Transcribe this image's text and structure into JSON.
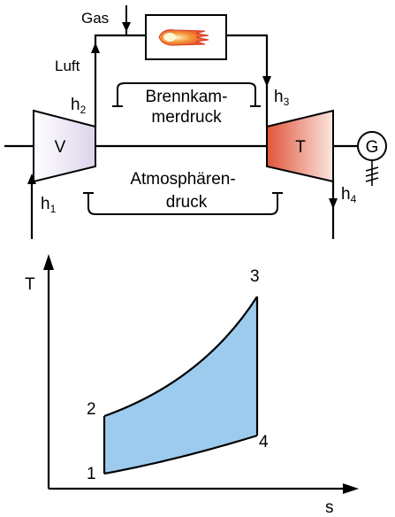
{
  "schematic": {
    "labels": {
      "gas": "Gas",
      "luft": "Luft",
      "compressor": "V",
      "turbine": "T",
      "generator": "G",
      "h1": "h",
      "h1_sub": "1",
      "h2": "h",
      "h2_sub": "2",
      "h3": "h",
      "h3_sub": "3",
      "h4": "h",
      "h4_sub": "4"
    },
    "combustion_pressure": {
      "line1": "Brennkam-",
      "line2": "merdruck"
    },
    "atmospheric_pressure": {
      "line1": "Atmosphären-",
      "line2": "druck"
    },
    "colors": {
      "compressor_fill": "#e9e2f3",
      "turbine_fill": "#e05a40",
      "flame": "#e8442a"
    }
  },
  "ts_diagram": {
    "y_axis_label": "T",
    "x_axis_label": "s",
    "points": [
      {
        "id": "1",
        "label": "1"
      },
      {
        "id": "2",
        "label": "2"
      },
      {
        "id": "3",
        "label": "3"
      },
      {
        "id": "4",
        "label": "4"
      }
    ],
    "fill_color": "#9ccbee"
  }
}
